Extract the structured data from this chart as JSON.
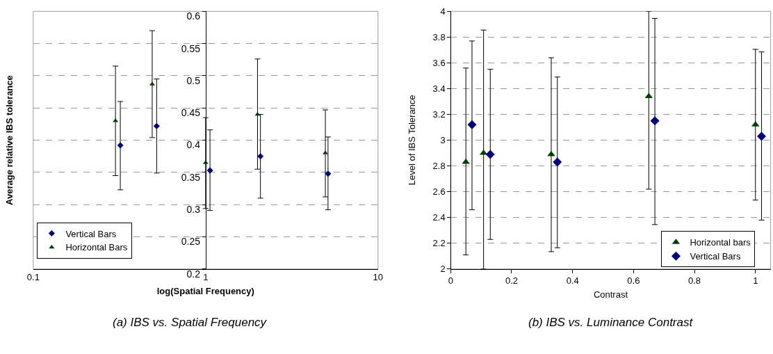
{
  "chart_data": [
    {
      "type": "scatter",
      "ylabel": "Average relative IBS tolerance",
      "xlabel": "log(Spatial Frequency)",
      "annotations": [
        "(a) IBS vs. Spatial Frequency"
      ],
      "log": "x",
      "xlim": [
        0.1,
        10
      ],
      "xticks": [
        0.1,
        1,
        10
      ],
      "ylim": [
        0.2,
        0.6
      ],
      "yticks": [
        0.2,
        0.25,
        0.3,
        0.35,
        0.4,
        0.45,
        0.5,
        0.55,
        0.6
      ],
      "grid": "y",
      "legend": "bottom left",
      "series": [
        {
          "name": "Vertical Bars",
          "color": "#000080",
          "marker": "diamond",
          "x": [
            0.32,
            0.52,
            1.06,
            2.08,
            5.13
          ],
          "values": [
            0.392,
            0.422,
            0.353,
            0.375,
            0.348
          ],
          "errors": [
            [
              0.323,
              0.46
            ],
            [
              0.349,
              0.495
            ],
            [
              0.291,
              0.416
            ],
            [
              0.31,
              0.44
            ],
            [
              0.292,
              0.405
            ]
          ]
        },
        {
          "name": "Horizontal Bars",
          "color": "#004000",
          "marker": "triangle",
          "x": [
            0.3,
            0.49,
            1.0,
            2.0,
            4.95
          ],
          "values": [
            0.43,
            0.487,
            0.365,
            0.44,
            0.38
          ],
          "errors": [
            [
              0.345,
              0.515
            ],
            [
              0.404,
              0.57
            ],
            [
              0.294,
              0.435
            ],
            [
              0.355,
              0.526
            ],
            [
              0.312,
              0.447
            ]
          ]
        }
      ]
    },
    {
      "type": "scatter",
      "ylabel": "Level of IBS Tolerance",
      "xlabel": "Contrast",
      "annotations": [
        "(b) IBS vs. Luminance Contrast"
      ],
      "xlim": [
        0,
        1.05
      ],
      "xticks": [
        0,
        0.2,
        0.4,
        0.6,
        0.8,
        1
      ],
      "ylim": [
        2,
        4
      ],
      "yticks": [
        2,
        2.2,
        2.4,
        2.6,
        2.8,
        3,
        3.2,
        3.4,
        3.6,
        3.8,
        4
      ],
      "grid": "y",
      "legend": "bottom right",
      "series": [
        {
          "name": "Horizontal bars",
          "color": "#004000",
          "marker": "triangle",
          "x": [
            0.05,
            0.108,
            0.33,
            0.65,
            1.0
          ],
          "values": [
            2.83,
            2.9,
            2.89,
            3.34,
            3.12
          ],
          "errors": [
            [
              2.11,
              3.56
            ],
            [
              2.0,
              3.855
            ],
            [
              2.135,
              3.64
            ],
            [
              2.62,
              4.0
            ],
            [
              2.535,
              3.705
            ]
          ]
        },
        {
          "name": "Vertical Bars",
          "color": "#000080",
          "marker": "diamond",
          "x": [
            0.07,
            0.13,
            0.35,
            0.67,
            1.02
          ],
          "values": [
            3.12,
            2.89,
            2.83,
            3.15,
            3.03
          ],
          "errors": [
            [
              2.46,
              3.77
            ],
            [
              2.23,
              3.55
            ],
            [
              2.165,
              3.49
            ],
            [
              2.345,
              3.945
            ],
            [
              2.38,
              3.685
            ]
          ]
        }
      ]
    }
  ]
}
